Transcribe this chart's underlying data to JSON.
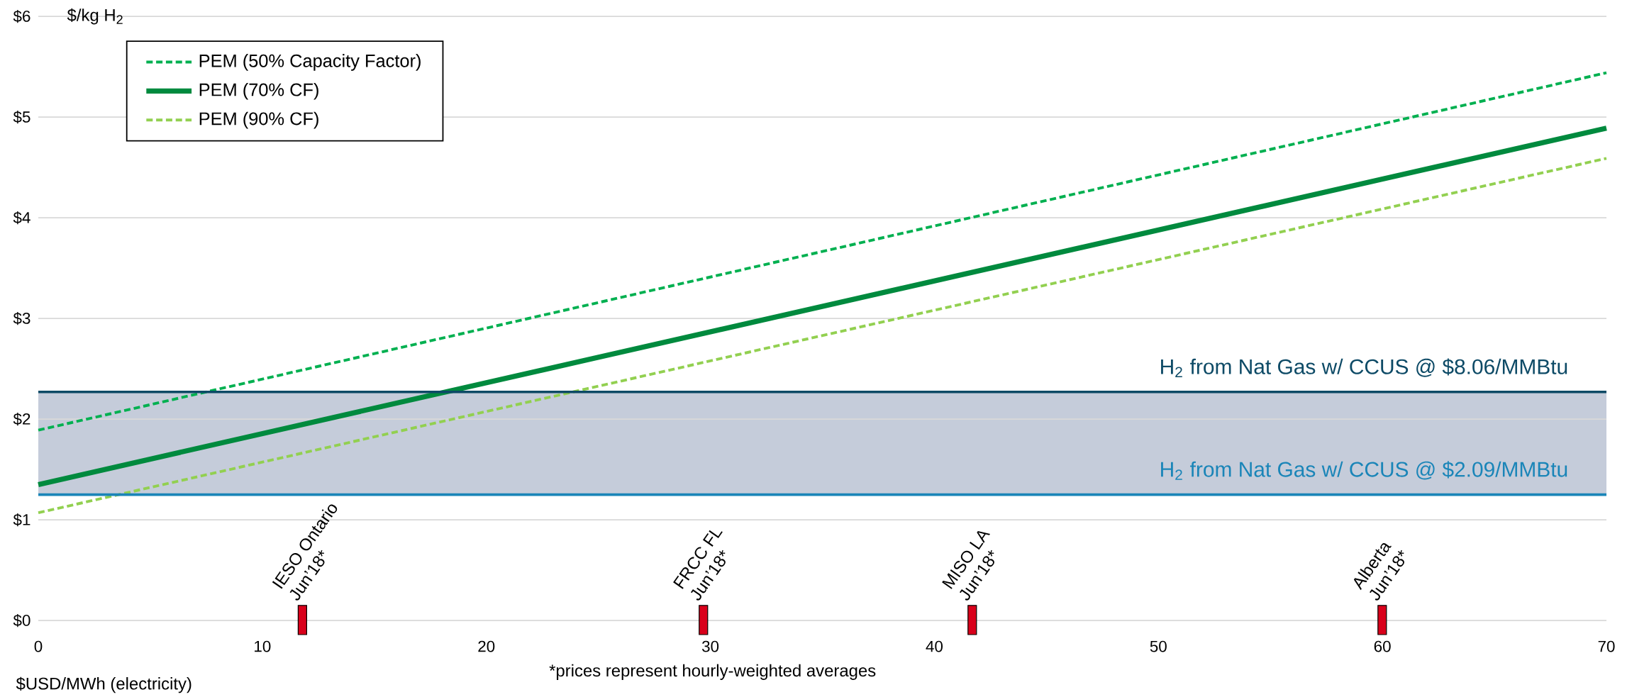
{
  "chart_data": {
    "type": "line",
    "ylabel": "$/kg H$_{2}$",
    "xlabel": "$USD/MWh  (electricity)",
    "xlim": [
      0,
      70
    ],
    "ylim": [
      0,
      6
    ],
    "xticks": [
      0,
      10,
      20,
      30,
      40,
      50,
      60,
      70
    ],
    "yticks": [
      {
        "value": 0,
        "label": "$0"
      },
      {
        "value": 1,
        "label": "$1"
      },
      {
        "value": 2,
        "label": "$2"
      },
      {
        "value": 3,
        "label": "$3"
      },
      {
        "value": 4,
        "label": "$4"
      },
      {
        "value": 5,
        "label": "$5"
      },
      {
        "value": 6,
        "label": "$6"
      }
    ],
    "grid": "y",
    "legend": "top left",
    "marker": "none",
    "series": [
      {
        "name": "PEM (50% Capacity Factor)",
        "color": "#00b050",
        "line_style": "dashed",
        "x": [
          0,
          70
        ],
        "values": [
          1.89,
          5.44
        ]
      },
      {
        "name": "PEM (70% CF)",
        "color": "#008a3e",
        "line_style": "solid",
        "x": [
          0,
          70
        ],
        "values": [
          1.35,
          4.89
        ]
      },
      {
        "name": "PEM (90% CF)",
        "color": "#92d050",
        "line_style": "dashed",
        "x": [
          0,
          70
        ],
        "values": [
          1.07,
          4.59
        ]
      },
      {
        "type": "bar",
        "color": "#d9001b",
        "x": [
          11.6,
          29.5,
          41.5,
          59.8
        ],
        "base": [
          -0.14,
          -0.14,
          -0.14,
          -0.14
        ],
        "values": [
          0.29,
          0.29,
          0.29,
          0.29
        ]
      }
    ],
    "bands": [
      {
        "axis": "y",
        "from": 1.25,
        "to": 2.27,
        "color": "#c5ccda"
      }
    ],
    "ref_lines": [
      {
        "axis": "y",
        "value": 2.27,
        "label": "H$_{2}$ from Nat Gas w/ CCUS @ $8.06/MMBtu",
        "color": "#0d4a66"
      },
      {
        "axis": "y",
        "value": 1.25,
        "label": "H$_{2}$ from Nat Gas w/ CCUS @ $2.09/MMBtu",
        "color": "#1a85b8"
      }
    ],
    "annotations": [
      {
        "text": "IESO Ontario Jun’18*",
        "x": 11.6,
        "y": 0.15
      },
      {
        "text": "FRCC FL Jun’18*",
        "x": 29.5,
        "y": 0.15
      },
      {
        "text": "MISO  LA Jun’18*",
        "x": 41.5,
        "y": 0.15
      },
      {
        "text": "Alberta Jun’18*",
        "x": 59.8,
        "y": 0.15
      },
      "*prices represent hourly-weighted  averages"
    ]
  }
}
